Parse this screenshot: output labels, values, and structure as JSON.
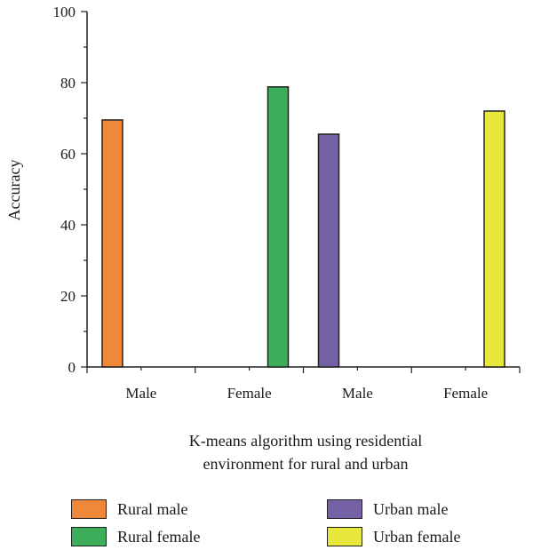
{
  "chart_data": {
    "type": "bar",
    "categories": [
      "Male",
      "Female",
      "Male",
      "Female"
    ],
    "ylabel": "Accuracy",
    "xlabel_lines": [
      "K-means algorithm using residential",
      "environment for rural and urban"
    ],
    "ylim": [
      0,
      100
    ],
    "yticks": [
      0,
      20,
      40,
      60,
      80,
      100
    ],
    "grid": false,
    "legend_position": "bottom",
    "series": [
      {
        "name": "Rural male",
        "color": "#f0883a",
        "values": [
          69.5,
          null,
          null,
          null
        ]
      },
      {
        "name": "Rural female",
        "color": "#3cae5a",
        "values": [
          null,
          78.8,
          null,
          null
        ]
      },
      {
        "name": "Urban male",
        "color": "#7461a6",
        "values": [
          null,
          null,
          65.5,
          null
        ]
      },
      {
        "name": "Urban female",
        "color": "#e8e83c",
        "values": [
          null,
          null,
          null,
          72.0
        ]
      }
    ]
  }
}
